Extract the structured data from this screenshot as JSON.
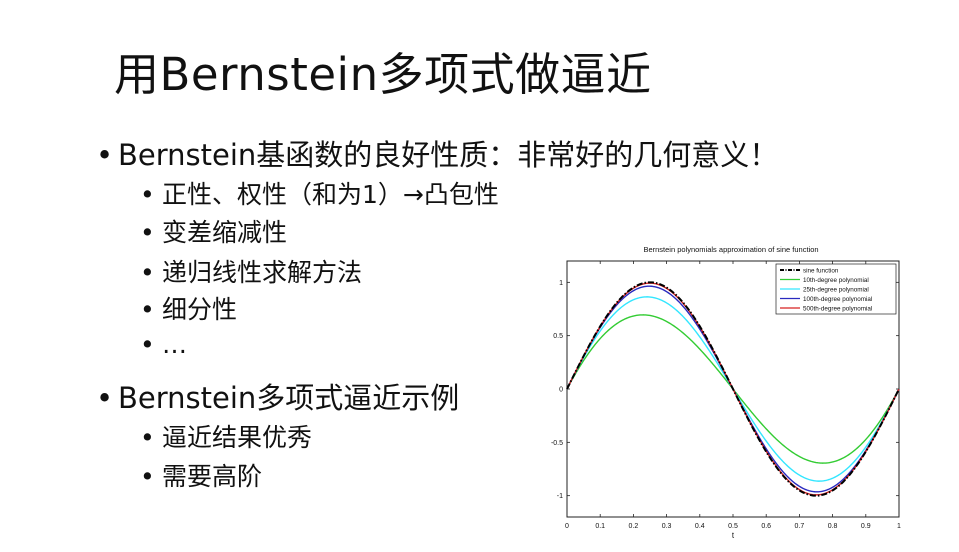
{
  "slide": {
    "title": "用Bernstein多项式做逼近",
    "bullets": [
      {
        "level": 1,
        "text": "Bernstein基函数的良好性质：非常好的几何意义！"
      },
      {
        "level": 2,
        "text": "正性、权性（和为1）→凸包性"
      },
      {
        "level": 2,
        "text": "变差缩减性"
      },
      {
        "level": 2,
        "text": "递归线性求解方法"
      },
      {
        "level": 2,
        "text": "细分性"
      },
      {
        "level": 2,
        "text": "…"
      },
      {
        "level": 1,
        "text": "Bernstein多项式逼近示例"
      },
      {
        "level": 2,
        "text": "逼近结果优秀"
      },
      {
        "level": 2,
        "text": "需要高阶"
      }
    ],
    "bullet_glyph": "•"
  },
  "chart_data": {
    "type": "line",
    "title": "Bernstein polynomials approximation of sine function",
    "xlabel": "t",
    "ylabel": "",
    "xlim": [
      0,
      1
    ],
    "ylim": [
      -1.2,
      1.2
    ],
    "xticks": [
      "0",
      "0.1",
      "0.2",
      "0.3",
      "0.4",
      "0.5",
      "0.6",
      "0.7",
      "0.8",
      "0.9",
      "1"
    ],
    "yticks": [
      "-1",
      "-0.5",
      "0",
      "0.5",
      "1"
    ],
    "legend_position": "top-right",
    "function": "sin(2*pi*t)",
    "series": [
      {
        "name": "sine function",
        "degree": null,
        "color": "#000000",
        "style": "dashdot"
      },
      {
        "name": "10th-degree polynomial",
        "degree": 10,
        "color": "#33cc33",
        "style": "solid"
      },
      {
        "name": "25th-degree polynomial",
        "degree": 25,
        "color": "#33e6ff",
        "style": "solid"
      },
      {
        "name": "100th-degree polynomial",
        "degree": 100,
        "color": "#2a2abf",
        "style": "solid"
      },
      {
        "name": "500th-degree polynomial",
        "degree": 500,
        "color": "#d62020",
        "style": "solid"
      }
    ]
  }
}
